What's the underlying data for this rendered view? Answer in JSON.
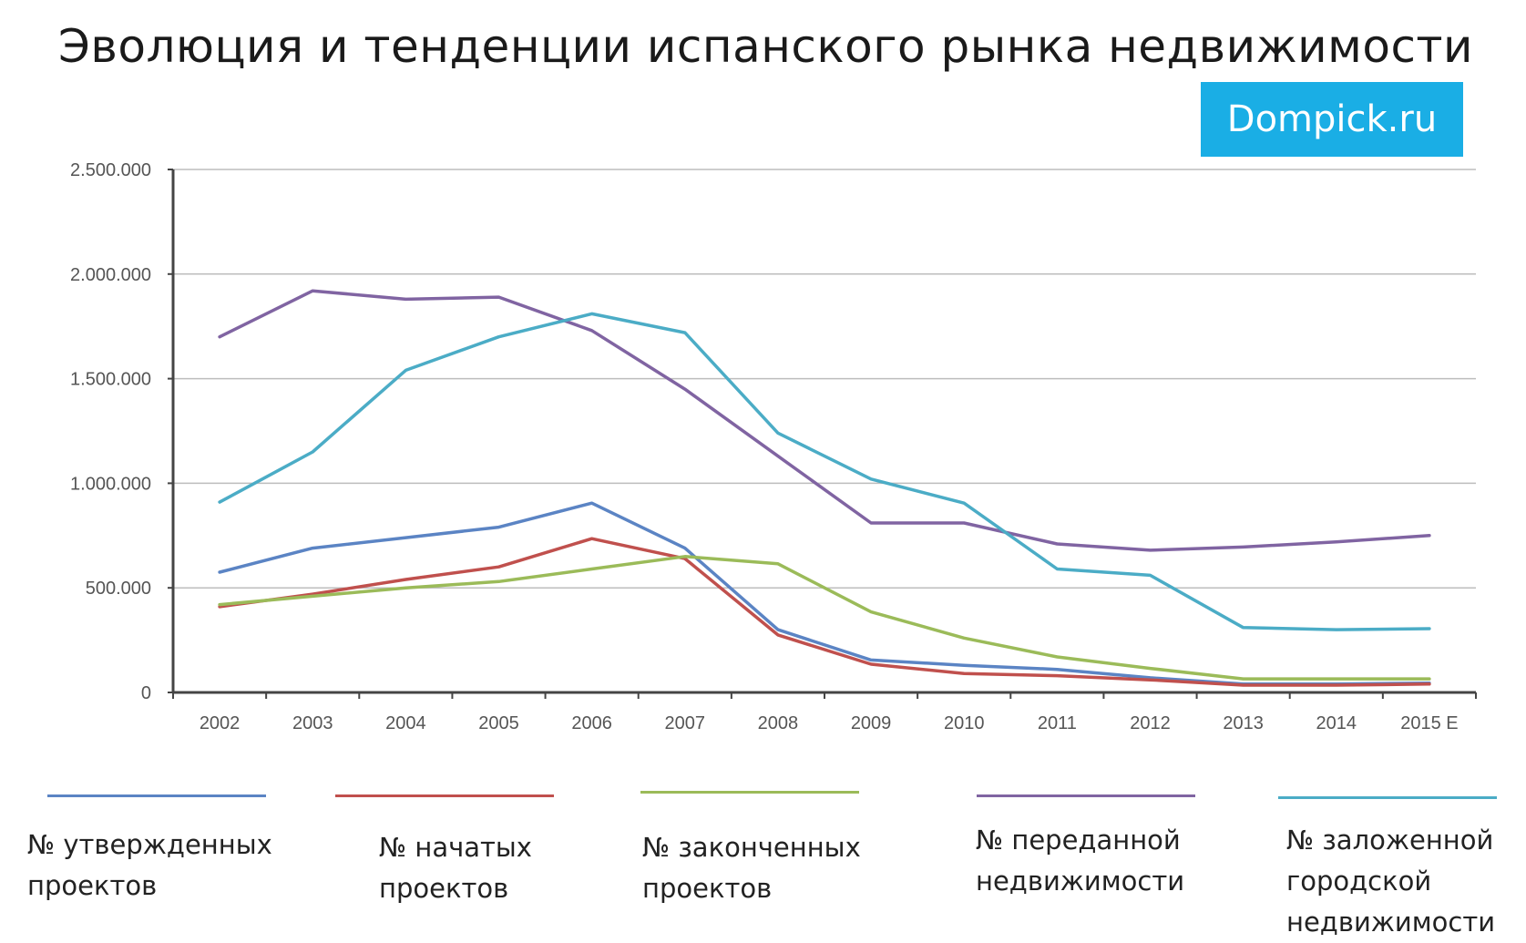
{
  "title": "Эволюция и тенденции испанского рынка недвижимости",
  "badge": {
    "text": "Dompick.ru",
    "color": "#1aaee5"
  },
  "chart_data": {
    "type": "line",
    "title": "",
    "xlabel": "",
    "ylabel": "",
    "x": [
      "2002",
      "2003",
      "2004",
      "2005",
      "2006",
      "2007",
      "2008",
      "2009",
      "2010",
      "2011",
      "2012",
      "2013",
      "2014",
      "2015 E"
    ],
    "ylim": [
      0,
      2500000
    ],
    "yticks": [
      0,
      500000,
      1000000,
      1500000,
      2000000,
      2500000
    ],
    "ytick_labels": [
      "0",
      "500.000",
      "1.000.000",
      "1.500.000",
      "2.000.000",
      "2.500.000"
    ],
    "grid": true,
    "legend": "bottom",
    "series": [
      {
        "name": "№ утвержденных\nпроектов",
        "color": "#5b84c4",
        "values": [
          575000,
          690000,
          740000,
          790000,
          905000,
          690000,
          300000,
          155000,
          130000,
          110000,
          70000,
          40000,
          40000,
          45000
        ]
      },
      {
        "name": "№ начатых\nпроектов",
        "color": "#c0504d",
        "values": [
          410000,
          470000,
          540000,
          600000,
          735000,
          640000,
          275000,
          135000,
          90000,
          80000,
          60000,
          35000,
          35000,
          40000
        ]
      },
      {
        "name": "№ законченных\nпроектов",
        "color": "#9bbb59",
        "values": [
          420000,
          460000,
          500000,
          530000,
          590000,
          650000,
          615000,
          385000,
          260000,
          170000,
          115000,
          65000,
          65000,
          65000
        ]
      },
      {
        "name": "№ переданной\nнедвижимости",
        "color": "#8064a2",
        "values": [
          1700000,
          1920000,
          1880000,
          1890000,
          1730000,
          1450000,
          1130000,
          810000,
          810000,
          710000,
          680000,
          695000,
          720000,
          750000
        ]
      },
      {
        "name": "№ заложенной\nгородской\nнедвижимости",
        "color": "#4bacc6",
        "values": [
          910000,
          1150000,
          1540000,
          1700000,
          1810000,
          1720000,
          1240000,
          1020000,
          905000,
          590000,
          560000,
          310000,
          300000,
          305000
        ]
      }
    ]
  }
}
